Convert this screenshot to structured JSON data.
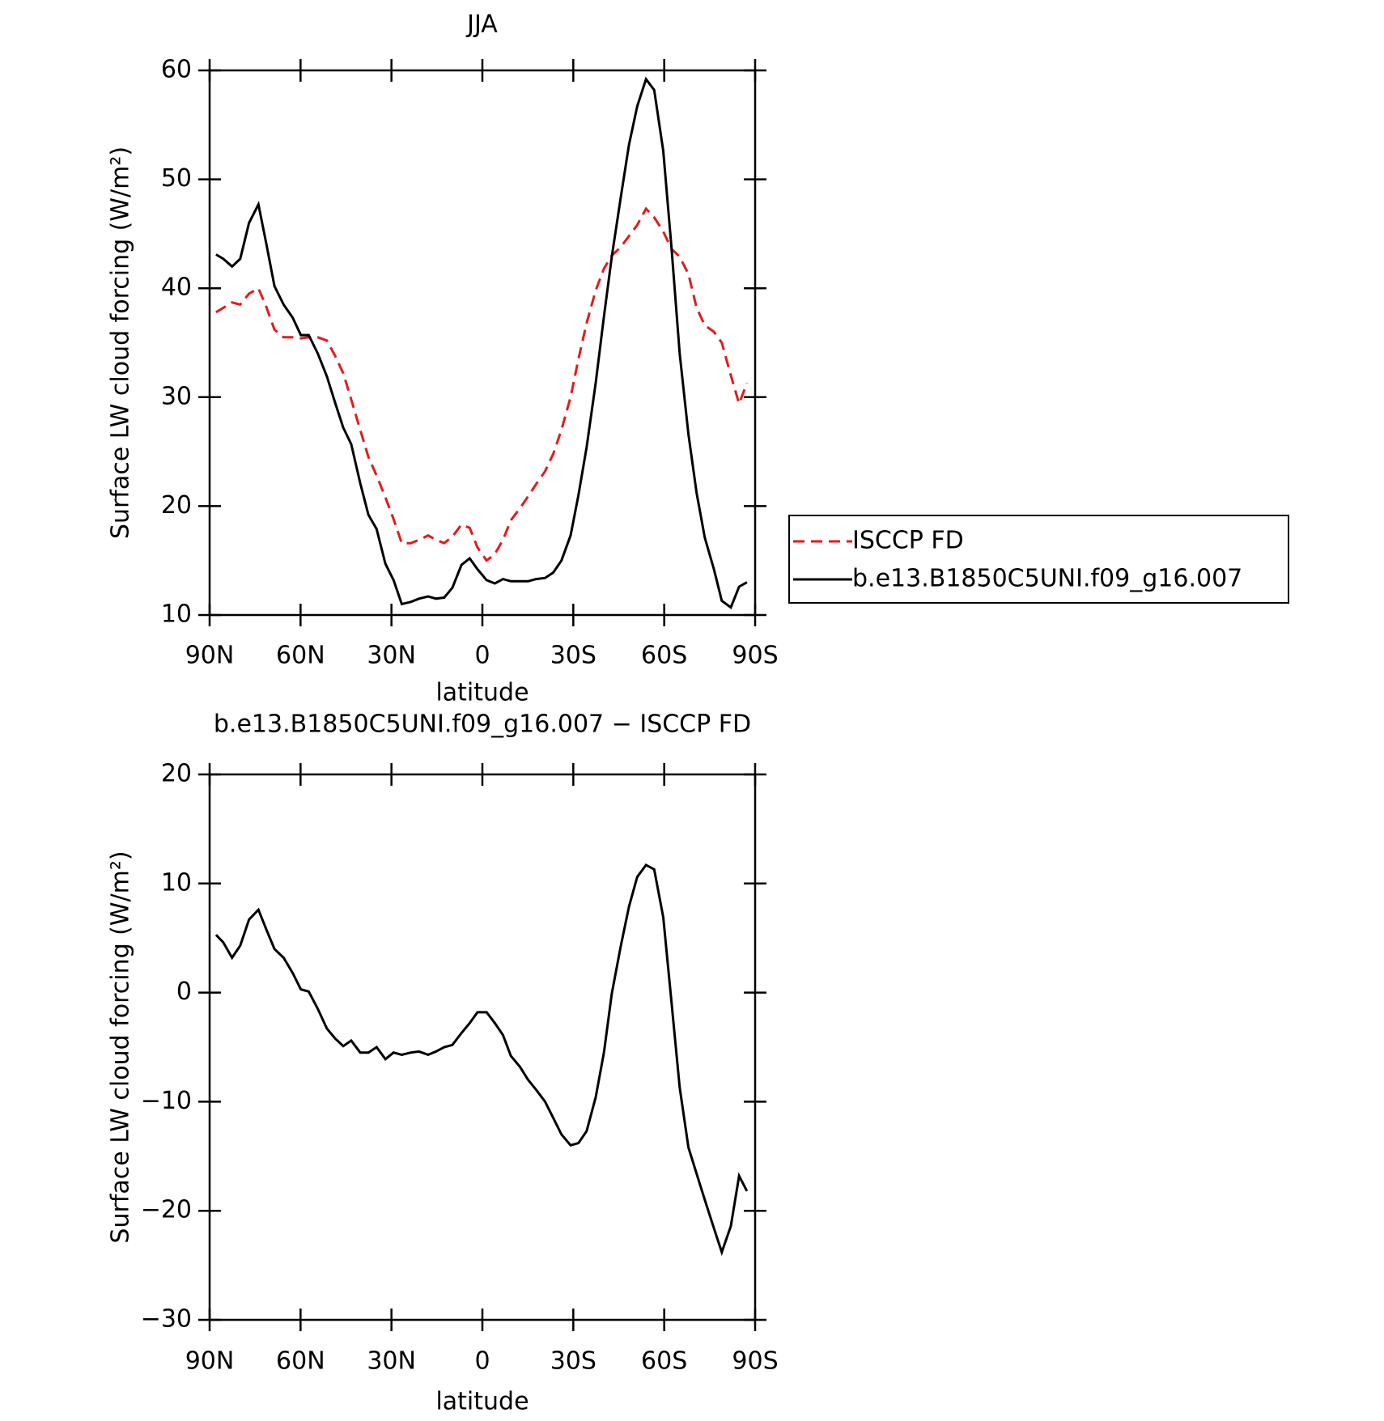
{
  "chart_data": [
    {
      "type": "line",
      "title": "JJA",
      "xlabel": "latitude",
      "ylabel": "Surface LW cloud forcing (W/m²)",
      "xlim": [
        90,
        -90
      ],
      "ylim": [
        10,
        60
      ],
      "xticks": [
        {
          "value": 90,
          "label": "90N"
        },
        {
          "value": 60,
          "label": "60N"
        },
        {
          "value": 30,
          "label": "30N"
        },
        0,
        {
          "value": -30,
          "label": "30S"
        },
        {
          "value": -60,
          "label": "60S"
        },
        {
          "value": -90,
          "label": "90S"
        }
      ],
      "yticks": [
        10,
        20,
        30,
        40,
        50,
        60
      ],
      "legend": "right",
      "x": [
        87.9,
        85.5,
        82.6,
        79.9,
        77,
        73.9,
        71.3,
        68.6,
        65.6,
        62.6,
        59.9,
        57.3,
        54.3,
        51.3,
        48.6,
        45.9,
        43.3,
        40.3,
        37.6,
        34.9,
        32,
        29.3,
        26.6,
        23.6,
        20.9,
        17.9,
        15.3,
        12.6,
        9.9,
        6.9,
        4.2,
        1.6,
        -1.4,
        -4.1,
        -6.8,
        -9.4,
        -12.4,
        -15.1,
        -17.7,
        -20.7,
        -23.4,
        -26.1,
        -29.1,
        -31.7,
        -34.4,
        -37.4,
        -40.1,
        -42.7,
        -45.7,
        -48.4,
        -51.1,
        -54,
        -56.7,
        -59.7,
        -62.4,
        -65.1,
        -68,
        -70.7,
        -73.4,
        -76.4,
        -79,
        -82,
        -84.7,
        -87.3
      ],
      "series": [
        {
          "name": "ISCCP FD",
          "color": "#e41a1c",
          "dashed": true,
          "values": [
            37.8,
            38.2,
            38.7,
            38.5,
            39.5,
            40.0,
            38.3,
            36.2,
            35.5,
            35.5,
            35.4,
            35.5,
            35.5,
            35.2,
            33.8,
            32.2,
            29.8,
            27.0,
            24.5,
            22.8,
            20.8,
            18.8,
            16.6,
            16.6,
            16.9,
            17.3,
            16.9,
            16.6,
            17.2,
            18.3,
            18.0,
            16.2,
            15.0,
            15.6,
            16.9,
            18.7,
            19.8,
            20.9,
            22.0,
            23.2,
            24.8,
            27.0,
            30.0,
            33.5,
            36.8,
            39.8,
            41.8,
            43.0,
            43.8,
            44.8,
            45.8,
            47.3,
            46.5,
            45.2,
            43.6,
            42.9,
            41.3,
            38.2,
            36.6,
            36.0,
            35.0,
            32.0,
            29.4,
            31.3
          ]
        },
        {
          "name": "b.e13.B1850C5UNI.f09_g16.007",
          "color": "#000000",
          "dashed": false,
          "values": [
            43.1,
            42.7,
            42.0,
            42.7,
            46.0,
            47.7,
            44.1,
            40.2,
            38.5,
            37.3,
            35.7,
            35.7,
            34.0,
            31.9,
            29.5,
            27.2,
            25.7,
            22.1,
            19.2,
            17.9,
            14.7,
            13.2,
            11.0,
            11.2,
            11.5,
            11.7,
            11.5,
            11.6,
            12.5,
            14.6,
            15.2,
            14.2,
            13.2,
            12.9,
            13.3,
            13.1,
            13.1,
            13.1,
            13.3,
            13.4,
            13.9,
            15.0,
            17.3,
            21.0,
            25.4,
            31.3,
            37.4,
            42.9,
            48.4,
            53.2,
            56.7,
            59.2,
            58.2,
            52.6,
            43.7,
            34.0,
            26.6,
            21.2,
            17.1,
            14.2,
            11.3,
            10.7,
            12.6,
            13.0
          ]
        }
      ]
    },
    {
      "type": "line",
      "title": "b.e13.B1850C5UNI.f09_g16.007 − ISCCP FD",
      "xlabel": "latitude",
      "ylabel": "Surface LW cloud forcing (W/m²)",
      "xlim": [
        90,
        -90
      ],
      "ylim": [
        -30,
        20
      ],
      "xticks": [
        {
          "value": 90,
          "label": "90N"
        },
        {
          "value": 60,
          "label": "60N"
        },
        {
          "value": 30,
          "label": "30N"
        },
        0,
        {
          "value": -30,
          "label": "30S"
        },
        {
          "value": -60,
          "label": "60S"
        },
        {
          "value": -90,
          "label": "90S"
        }
      ],
      "yticks": [
        {
          "value": -30,
          "label": "−30"
        },
        {
          "value": -20,
          "label": "−20"
        },
        {
          "value": -10,
          "label": "−10"
        },
        0,
        10,
        20
      ],
      "x": [
        87.9,
        85.5,
        82.6,
        79.9,
        77,
        73.9,
        71.3,
        68.6,
        65.6,
        62.6,
        59.9,
        57.3,
        54.3,
        51.3,
        48.6,
        45.9,
        43.3,
        40.3,
        37.6,
        34.9,
        32,
        29.3,
        26.6,
        23.6,
        20.9,
        17.9,
        15.3,
        12.6,
        9.9,
        6.9,
        4.2,
        1.6,
        -1.4,
        -4.1,
        -6.8,
        -9.4,
        -12.4,
        -15.1,
        -17.7,
        -20.7,
        -23.4,
        -26.1,
        -29.1,
        -31.7,
        -34.4,
        -37.4,
        -40.1,
        -42.7,
        -45.7,
        -48.4,
        -51.1,
        -54,
        -56.7,
        -59.7,
        -62.4,
        -65.1,
        -68,
        -70.7,
        -73.4,
        -76.4,
        -79,
        -82,
        -84.7,
        -87.3
      ],
      "series": [
        {
          "color": "#000000",
          "dashed": false,
          "values": [
            5.3,
            4.6,
            3.2,
            4.3,
            6.7,
            7.6,
            5.8,
            4.0,
            3.2,
            1.8,
            0.3,
            0.1,
            -1.5,
            -3.3,
            -4.2,
            -4.9,
            -4.4,
            -5.5,
            -5.5,
            -5.0,
            -6.1,
            -5.5,
            -5.7,
            -5.5,
            -5.4,
            -5.7,
            -5.4,
            -5.0,
            -4.8,
            -3.7,
            -2.8,
            -1.8,
            -1.8,
            -2.8,
            -3.9,
            -5.8,
            -6.8,
            -8.0,
            -8.9,
            -10.0,
            -11.5,
            -13.0,
            -14.0,
            -13.8,
            -12.7,
            -9.6,
            -5.5,
            -0.1,
            4.3,
            7.9,
            10.6,
            11.7,
            11.3,
            6.9,
            -0.9,
            -8.7,
            -14.2,
            -16.6,
            -19.0,
            -21.6,
            -23.8,
            -21.4,
            -16.8,
            -18.2
          ]
        }
      ]
    }
  ]
}
